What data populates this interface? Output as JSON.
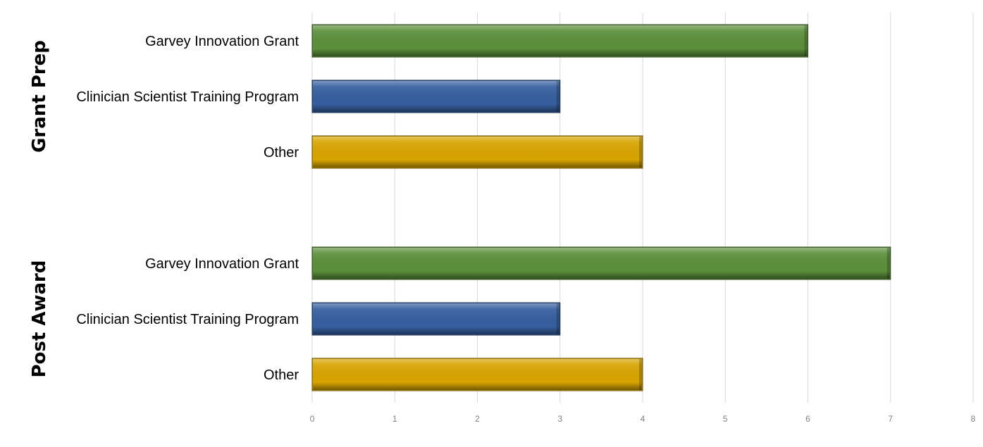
{
  "chart_data": {
    "type": "bar",
    "orientation": "horizontal",
    "title": "",
    "xlabel": "",
    "ylabel": "",
    "xlim": [
      0,
      8
    ],
    "x_ticks": [
      "0",
      "1",
      "2",
      "3",
      "4",
      "5",
      "6",
      "7",
      "8"
    ],
    "grid": "vertical",
    "legend": "none",
    "groups": [
      {
        "name": "Grant Prep",
        "bars": [
          {
            "label": "Garvey Innovation Grant",
            "value": 6,
            "color": "#5b8f3a"
          },
          {
            "label": "Clinician Scientist Training Program",
            "value": 3,
            "color": "#365f9f"
          },
          {
            "label": "Other",
            "value": 4,
            "color": "#d7a400"
          }
        ]
      },
      {
        "name": "Post Award",
        "bars": [
          {
            "label": "Garvey Innovation Grant",
            "value": 7,
            "color": "#5b8f3a"
          },
          {
            "label": "Clinician Scientist Training Program",
            "value": 3,
            "color": "#365f9f"
          },
          {
            "label": "Other",
            "value": 4,
            "color": "#d7a400"
          }
        ]
      }
    ]
  }
}
